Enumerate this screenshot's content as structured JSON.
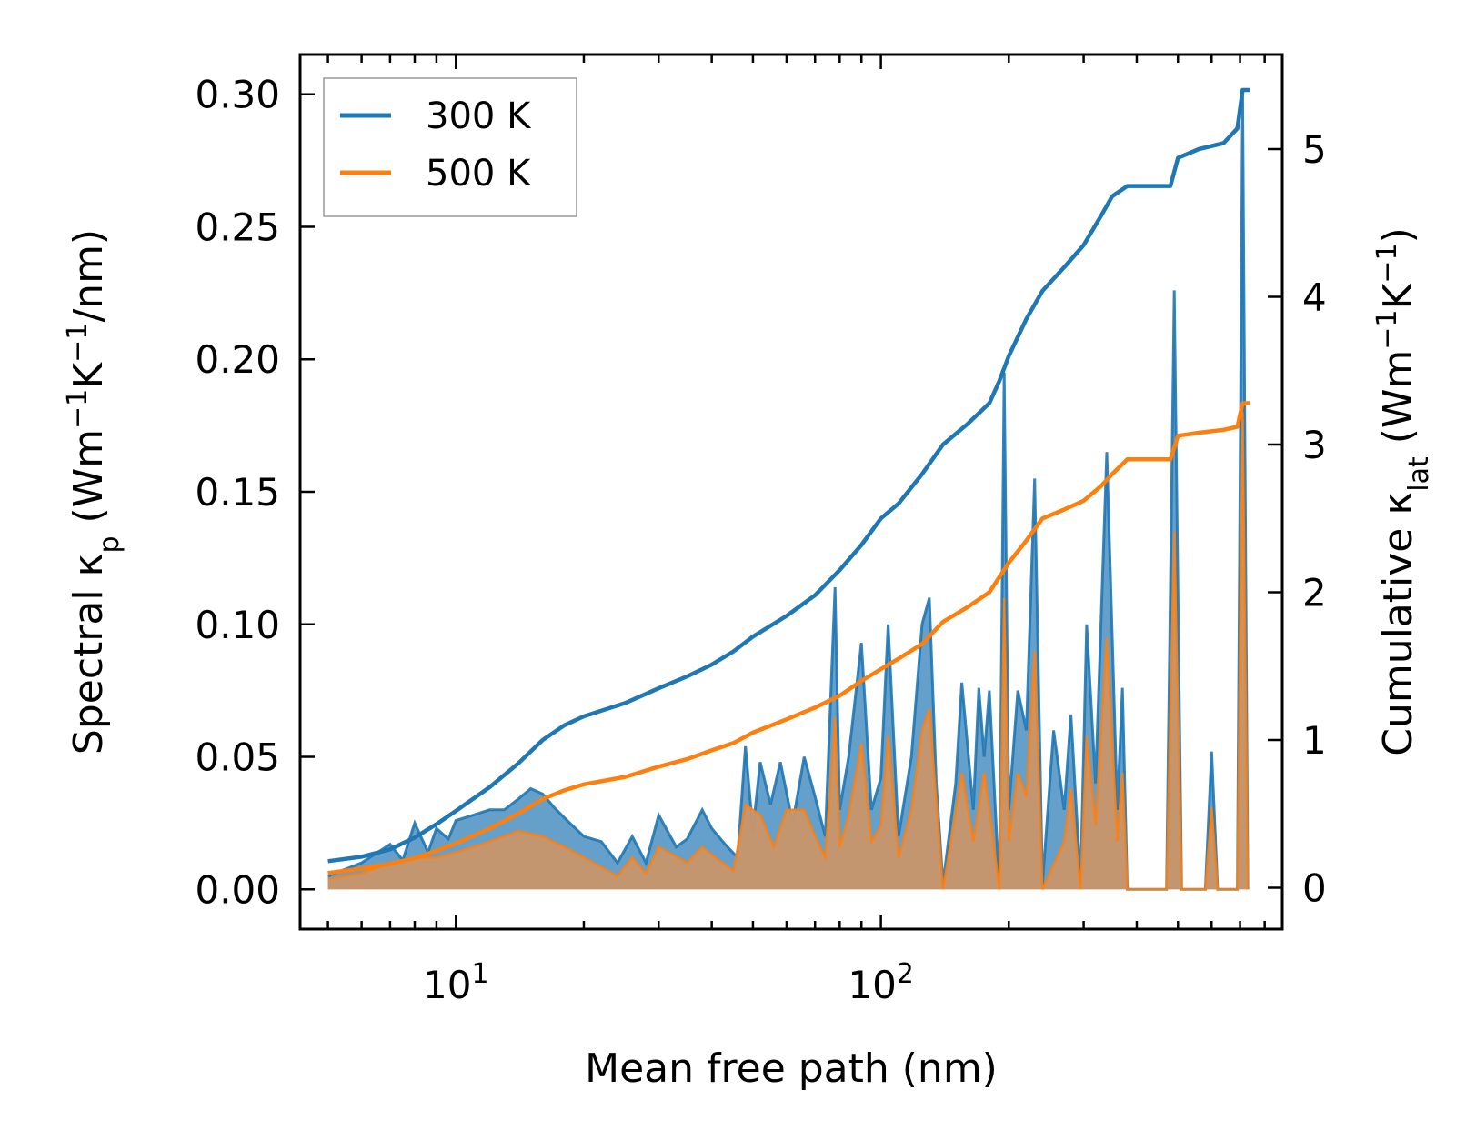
{
  "chart_data": {
    "type": "line",
    "xscale": "log",
    "xlim": [
      4.3,
      880
    ],
    "ylim_left": [
      -0.015,
      0.315
    ],
    "ylim_right": [
      -0.28,
      5.64
    ],
    "xlabel": "Mean free path (nm)",
    "ylabel_left": {
      "main": "Spectral κ",
      "sub": "p",
      "unit_open": " (Wm",
      "exp1": "−1",
      "mid": "K",
      "exp2": "−1",
      "unit_close": "/nm)"
    },
    "ylabel_right": {
      "main": "Cumulative κ",
      "sub": "lat",
      "unit_open": " (Wm",
      "exp1": "−1",
      "mid": "K",
      "exp2": "−1",
      "unit_close": ")"
    },
    "x_ticks": [
      {
        "value": 10,
        "base": "10",
        "exp": "1"
      },
      {
        "value": 100,
        "base": "10",
        "exp": "2"
      }
    ],
    "y_ticks_left": [
      {
        "value": 0.0,
        "label": "0.00"
      },
      {
        "value": 0.05,
        "label": "0.05"
      },
      {
        "value": 0.1,
        "label": "0.10"
      },
      {
        "value": 0.15,
        "label": "0.15"
      },
      {
        "value": 0.2,
        "label": "0.20"
      },
      {
        "value": 0.25,
        "label": "0.25"
      },
      {
        "value": 0.3,
        "label": "0.30"
      }
    ],
    "y_ticks_right": [
      {
        "value": 0,
        "label": "0"
      },
      {
        "value": 1,
        "label": "1"
      },
      {
        "value": 2,
        "label": "2"
      },
      {
        "value": 3,
        "label": "3"
      },
      {
        "value": 4,
        "label": "4"
      },
      {
        "value": 5,
        "label": "5"
      }
    ],
    "legend": {
      "position": "upper-left"
    },
    "series": [
      {
        "name": "300 K",
        "color": "#1f77b4",
        "cumulative": [
          [
            5,
            0.18
          ],
          [
            6,
            0.21
          ],
          [
            7,
            0.26
          ],
          [
            8,
            0.34
          ],
          [
            9,
            0.43
          ],
          [
            10,
            0.52
          ],
          [
            12,
            0.68
          ],
          [
            14,
            0.84
          ],
          [
            16,
            1.0
          ],
          [
            18,
            1.1
          ],
          [
            20,
            1.16
          ],
          [
            25,
            1.25
          ],
          [
            30,
            1.35
          ],
          [
            35,
            1.43
          ],
          [
            40,
            1.51
          ],
          [
            45,
            1.6
          ],
          [
            50,
            1.7
          ],
          [
            60,
            1.84
          ],
          [
            70,
            1.98
          ],
          [
            80,
            2.15
          ],
          [
            90,
            2.32
          ],
          [
            100,
            2.5
          ],
          [
            110,
            2.6
          ],
          [
            125,
            2.8
          ],
          [
            140,
            3.0
          ],
          [
            160,
            3.14
          ],
          [
            180,
            3.28
          ],
          [
            190,
            3.43
          ],
          [
            200,
            3.6
          ],
          [
            220,
            3.85
          ],
          [
            240,
            4.04
          ],
          [
            270,
            4.2
          ],
          [
            300,
            4.35
          ],
          [
            330,
            4.55
          ],
          [
            350,
            4.68
          ],
          [
            380,
            4.75
          ],
          [
            420,
            4.75
          ],
          [
            480,
            4.75
          ],
          [
            500,
            4.94
          ],
          [
            560,
            5.0
          ],
          [
            640,
            5.04
          ],
          [
            690,
            5.14
          ],
          [
            710,
            5.4
          ],
          [
            740,
            5.4
          ]
        ],
        "spectral": [
          [
            5,
            0.005
          ],
          [
            6,
            0.01
          ],
          [
            7,
            0.017
          ],
          [
            7.5,
            0.011
          ],
          [
            8,
            0.025
          ],
          [
            8.6,
            0.014
          ],
          [
            9,
            0.023
          ],
          [
            9.6,
            0.019
          ],
          [
            10,
            0.026
          ],
          [
            11,
            0.028
          ],
          [
            12,
            0.03
          ],
          [
            13,
            0.03
          ],
          [
            14,
            0.034
          ],
          [
            15,
            0.038
          ],
          [
            16,
            0.036
          ],
          [
            17,
            0.031
          ],
          [
            18,
            0.027
          ],
          [
            20,
            0.02
          ],
          [
            22,
            0.018
          ],
          [
            24,
            0.01
          ],
          [
            26,
            0.02
          ],
          [
            28,
            0.01
          ],
          [
            30,
            0.028
          ],
          [
            33,
            0.016
          ],
          [
            35,
            0.019
          ],
          [
            38,
            0.03
          ],
          [
            40,
            0.023
          ],
          [
            43,
            0.017
          ],
          [
            46,
            0.012
          ],
          [
            48,
            0.054
          ],
          [
            50,
            0.022
          ],
          [
            52,
            0.048
          ],
          [
            55,
            0.032
          ],
          [
            58,
            0.048
          ],
          [
            62,
            0.025
          ],
          [
            66,
            0.05
          ],
          [
            70,
            0.035
          ],
          [
            74,
            0.02
          ],
          [
            78,
            0.114
          ],
          [
            80,
            0.03
          ],
          [
            84,
            0.05
          ],
          [
            90,
            0.093
          ],
          [
            95,
            0.03
          ],
          [
            100,
            0.042
          ],
          [
            104,
            0.1
          ],
          [
            110,
            0.02
          ],
          [
            118,
            0.05
          ],
          [
            125,
            0.1
          ],
          [
            130,
            0.11
          ],
          [
            135,
            0.04
          ],
          [
            140,
            0.002
          ],
          [
            150,
            0.04
          ],
          [
            155,
            0.078
          ],
          [
            165,
            0.03
          ],
          [
            170,
            0.076
          ],
          [
            175,
            0.05
          ],
          [
            180,
            0.075
          ],
          [
            190,
            0.0
          ],
          [
            195,
            0.195
          ],
          [
            200,
            0.03
          ],
          [
            210,
            0.075
          ],
          [
            220,
            0.06
          ],
          [
            230,
            0.155
          ],
          [
            240,
            0.002
          ],
          [
            255,
            0.06
          ],
          [
            270,
            0.03
          ],
          [
            280,
            0.066
          ],
          [
            295,
            0.002
          ],
          [
            305,
            0.1
          ],
          [
            320,
            0.04
          ],
          [
            340,
            0.165
          ],
          [
            360,
            0.03
          ],
          [
            370,
            0.076
          ],
          [
            380,
            0.0
          ],
          [
            470,
            0.0
          ],
          [
            490,
            0.226
          ],
          [
            510,
            0.0
          ],
          [
            580,
            0.0
          ],
          [
            600,
            0.052
          ],
          [
            620,
            0.0
          ],
          [
            690,
            0.0
          ],
          [
            710,
            0.3
          ],
          [
            730,
            0.0
          ]
        ]
      },
      {
        "name": "500 K",
        "color": "#ff7f0e",
        "cumulative": [
          [
            5,
            0.1
          ],
          [
            6,
            0.13
          ],
          [
            7,
            0.16
          ],
          [
            8,
            0.2
          ],
          [
            9,
            0.25
          ],
          [
            10,
            0.3
          ],
          [
            12,
            0.4
          ],
          [
            14,
            0.5
          ],
          [
            16,
            0.6
          ],
          [
            18,
            0.66
          ],
          [
            20,
            0.7
          ],
          [
            25,
            0.75
          ],
          [
            30,
            0.82
          ],
          [
            35,
            0.87
          ],
          [
            40,
            0.93
          ],
          [
            45,
            0.98
          ],
          [
            50,
            1.05
          ],
          [
            60,
            1.14
          ],
          [
            70,
            1.22
          ],
          [
            80,
            1.3
          ],
          [
            90,
            1.4
          ],
          [
            100,
            1.48
          ],
          [
            110,
            1.55
          ],
          [
            125,
            1.65
          ],
          [
            140,
            1.8
          ],
          [
            160,
            1.9
          ],
          [
            180,
            2.0
          ],
          [
            200,
            2.2
          ],
          [
            220,
            2.35
          ],
          [
            240,
            2.5
          ],
          [
            270,
            2.56
          ],
          [
            300,
            2.62
          ],
          [
            330,
            2.72
          ],
          [
            350,
            2.8
          ],
          [
            380,
            2.9
          ],
          [
            420,
            2.9
          ],
          [
            480,
            2.9
          ],
          [
            500,
            3.06
          ],
          [
            560,
            3.08
          ],
          [
            640,
            3.1
          ],
          [
            690,
            3.12
          ],
          [
            710,
            3.28
          ],
          [
            740,
            3.28
          ]
        ],
        "spectral": [
          [
            5,
            0.004
          ],
          [
            6,
            0.006
          ],
          [
            7,
            0.01
          ],
          [
            8,
            0.012
          ],
          [
            9,
            0.012
          ],
          [
            10,
            0.014
          ],
          [
            12,
            0.018
          ],
          [
            14,
            0.022
          ],
          [
            16,
            0.02
          ],
          [
            18,
            0.016
          ],
          [
            20,
            0.012
          ],
          [
            24,
            0.005
          ],
          [
            26,
            0.012
          ],
          [
            28,
            0.006
          ],
          [
            30,
            0.016
          ],
          [
            35,
            0.01
          ],
          [
            38,
            0.016
          ],
          [
            40,
            0.013
          ],
          [
            45,
            0.007
          ],
          [
            48,
            0.032
          ],
          [
            52,
            0.028
          ],
          [
            56,
            0.016
          ],
          [
            60,
            0.03
          ],
          [
            66,
            0.03
          ],
          [
            70,
            0.02
          ],
          [
            74,
            0.012
          ],
          [
            78,
            0.065
          ],
          [
            80,
            0.016
          ],
          [
            84,
            0.028
          ],
          [
            90,
            0.055
          ],
          [
            95,
            0.018
          ],
          [
            100,
            0.024
          ],
          [
            104,
            0.058
          ],
          [
            110,
            0.012
          ],
          [
            118,
            0.03
          ],
          [
            125,
            0.06
          ],
          [
            130,
            0.068
          ],
          [
            140,
            0.0
          ],
          [
            155,
            0.044
          ],
          [
            165,
            0.018
          ],
          [
            175,
            0.044
          ],
          [
            180,
            0.03
          ],
          [
            190,
            0.0
          ],
          [
            195,
            0.11
          ],
          [
            200,
            0.018
          ],
          [
            210,
            0.044
          ],
          [
            220,
            0.035
          ],
          [
            230,
            0.09
          ],
          [
            240,
            0.0
          ],
          [
            270,
            0.018
          ],
          [
            280,
            0.038
          ],
          [
            295,
            0.0
          ],
          [
            305,
            0.058
          ],
          [
            320,
            0.024
          ],
          [
            340,
            0.095
          ],
          [
            360,
            0.018
          ],
          [
            370,
            0.044
          ],
          [
            380,
            0.0
          ],
          [
            470,
            0.0
          ],
          [
            490,
            0.135
          ],
          [
            510,
            0.0
          ],
          [
            580,
            0.0
          ],
          [
            600,
            0.031
          ],
          [
            620,
            0.0
          ],
          [
            690,
            0.0
          ],
          [
            710,
            0.18
          ],
          [
            730,
            0.0
          ]
        ]
      }
    ]
  }
}
